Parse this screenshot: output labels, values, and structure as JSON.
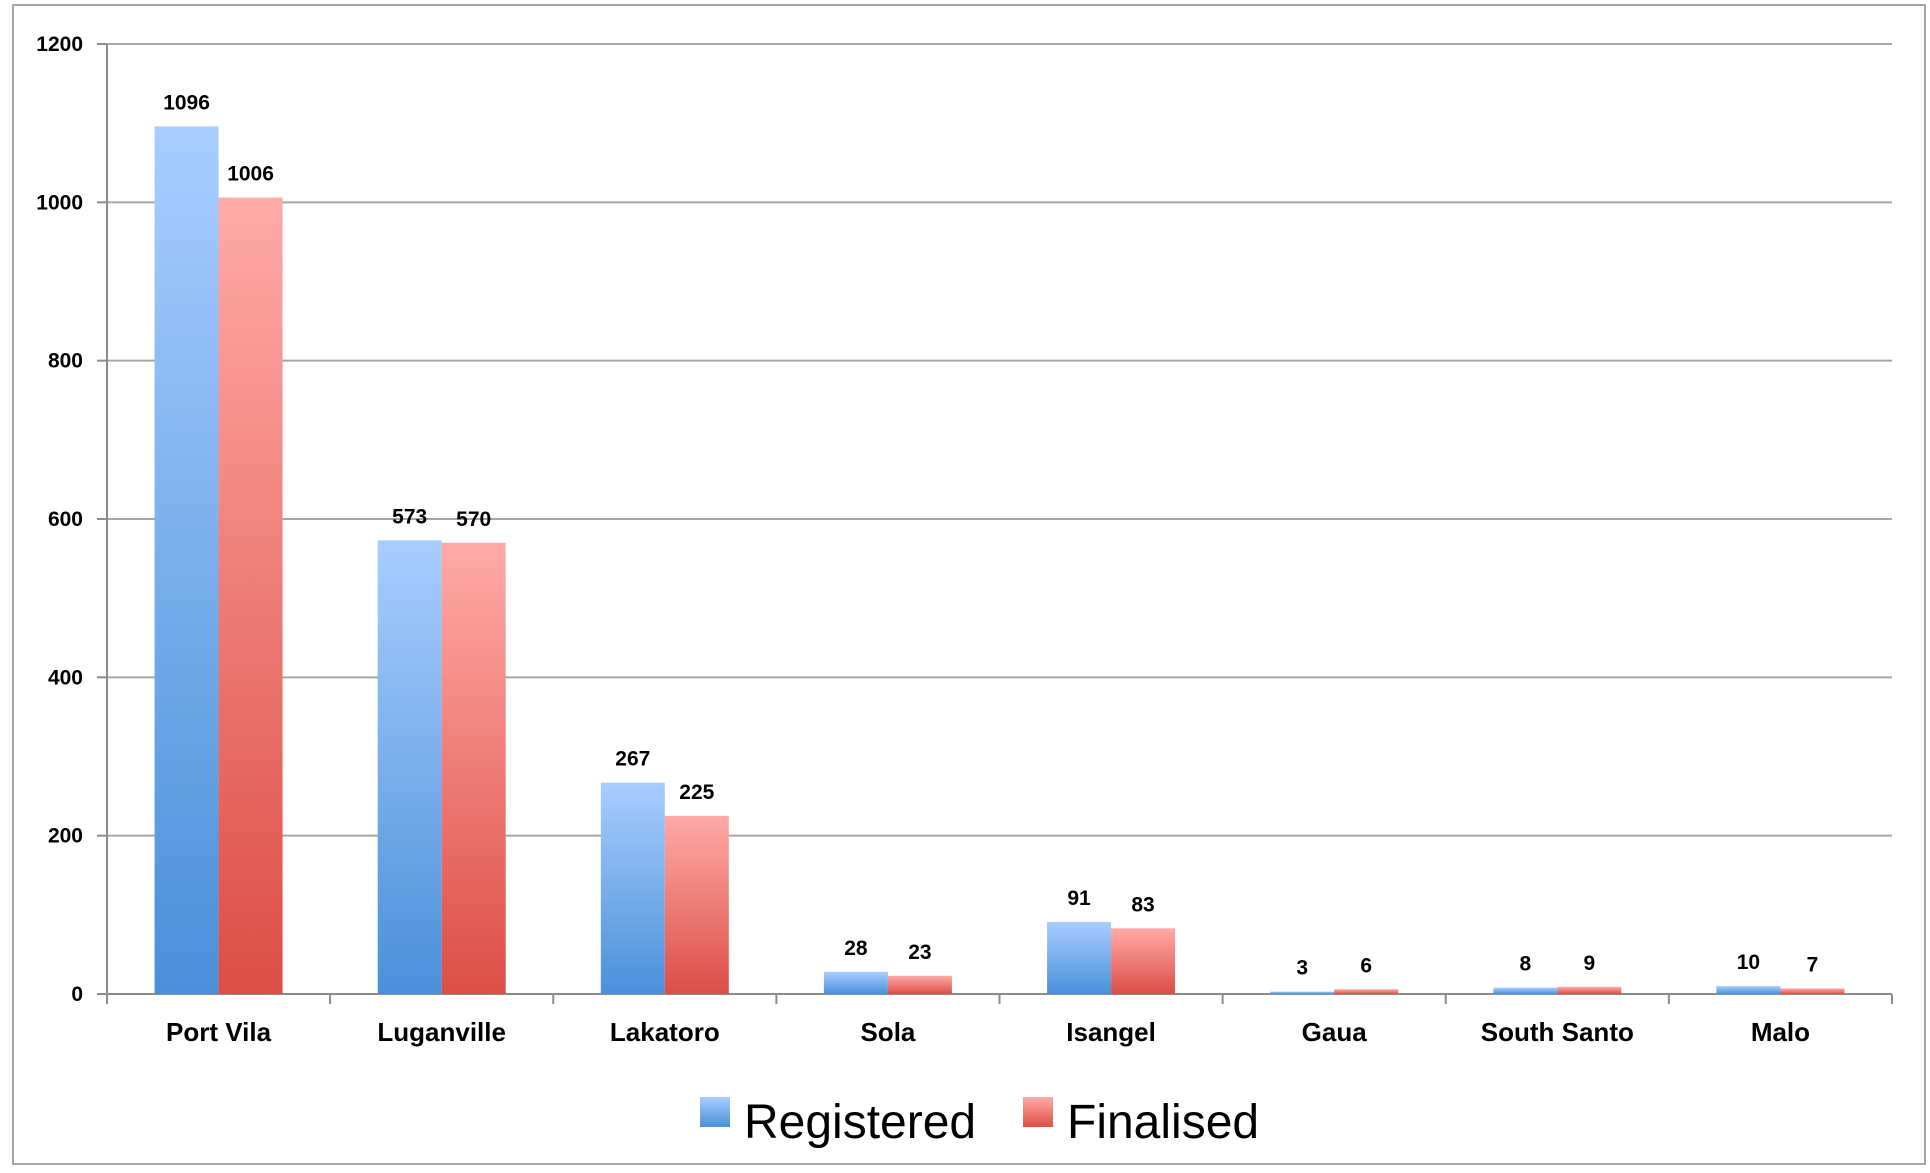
{
  "chart_data": {
    "type": "bar",
    "title": "",
    "xlabel": "",
    "ylabel": "",
    "ylim": [
      0,
      1200
    ],
    "yticks": [
      0,
      200,
      400,
      600,
      800,
      1000,
      1200
    ],
    "grid": true,
    "legend_position": "bottom",
    "categories": [
      "Port Vila",
      "Luganville",
      "Lakatoro",
      "Sola",
      "Isangel",
      "Gaua",
      "South Santo",
      "Malo"
    ],
    "series": [
      {
        "name": "Registered",
        "color": "#5b9bd5",
        "gradient": [
          "#a9cdff",
          "#4a90d9"
        ],
        "values": [
          1096,
          573,
          267,
          28,
          91,
          3,
          8,
          10
        ]
      },
      {
        "name": "Finalised",
        "color": "#e8605a",
        "gradient": [
          "#ffaaa8",
          "#dc4e46"
        ],
        "values": [
          1006,
          570,
          225,
          23,
          83,
          6,
          9,
          7
        ]
      }
    ]
  }
}
